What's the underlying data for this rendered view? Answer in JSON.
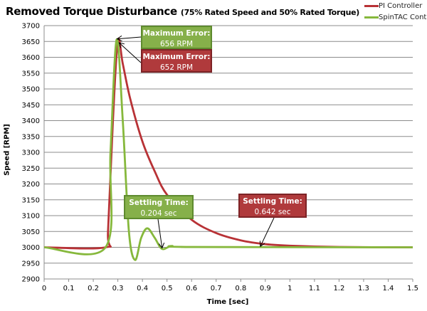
{
  "chart_data": {
    "type": "line",
    "title": "Removed Torque Disturbance",
    "subtitle": "(75% Rated Speed and 50% Rated Torque)",
    "xlabel": "Time [sec]",
    "ylabel": "Speed [RPM]",
    "xlim": [
      0,
      1.5
    ],
    "ylim": [
      2900,
      3700
    ],
    "xticks": [
      "0",
      "0.1",
      "0.2",
      "0.3",
      "0.4",
      "0.5",
      "0.6",
      "0.7",
      "0.8",
      "0.9",
      "1",
      "1.1",
      "1.2",
      "1.3",
      "1.4",
      "1.5"
    ],
    "yticks": [
      "2900",
      "2950",
      "3000",
      "3050",
      "3100",
      "3150",
      "3200",
      "3250",
      "3300",
      "3350",
      "3400",
      "3450",
      "3500",
      "3550",
      "3600",
      "3650",
      "3700"
    ],
    "grid": "horizontal",
    "legend_position": "top-right",
    "series": [
      {
        "name": "PI Controller",
        "color": "#b83236",
        "x": [
          0,
          0.25,
          0.26,
          0.28,
          0.3,
          0.32,
          0.35,
          0.4,
          0.45,
          0.5,
          0.6,
          0.7,
          0.8,
          0.9,
          1.0,
          1.2,
          1.5
        ],
        "y": [
          3000,
          3000,
          3050,
          3400,
          3652,
          3580,
          3470,
          3334,
          3240,
          3166,
          3087,
          3045,
          3022,
          3010,
          3005,
          3001,
          3000
        ]
      },
      {
        "name": "SpinTAC Controller",
        "color": "#86b83c",
        "x": [
          0,
          0.25,
          0.27,
          0.295,
          0.32,
          0.345,
          0.37,
          0.395,
          0.42,
          0.45,
          0.48,
          0.52,
          0.6,
          1.5
        ],
        "y": [
          3000,
          3000,
          3300,
          3656,
          3400,
          3050,
          2960,
          3030,
          3060,
          3030,
          2995,
          3004,
          3001,
          3000
        ]
      }
    ],
    "annotations": [
      {
        "title": "Maximum Error:",
        "value": "656 RPM",
        "color": "#86b04a"
      },
      {
        "title": "Maximum Error:",
        "value": "652 RPM",
        "color": "#b03a3c"
      },
      {
        "title": "Settling Time:",
        "value": "0.204 sec",
        "color": "#86b04a"
      },
      {
        "title": "Settling Time:",
        "value": "0.642 sec",
        "color": "#b03a3c"
      }
    ]
  }
}
